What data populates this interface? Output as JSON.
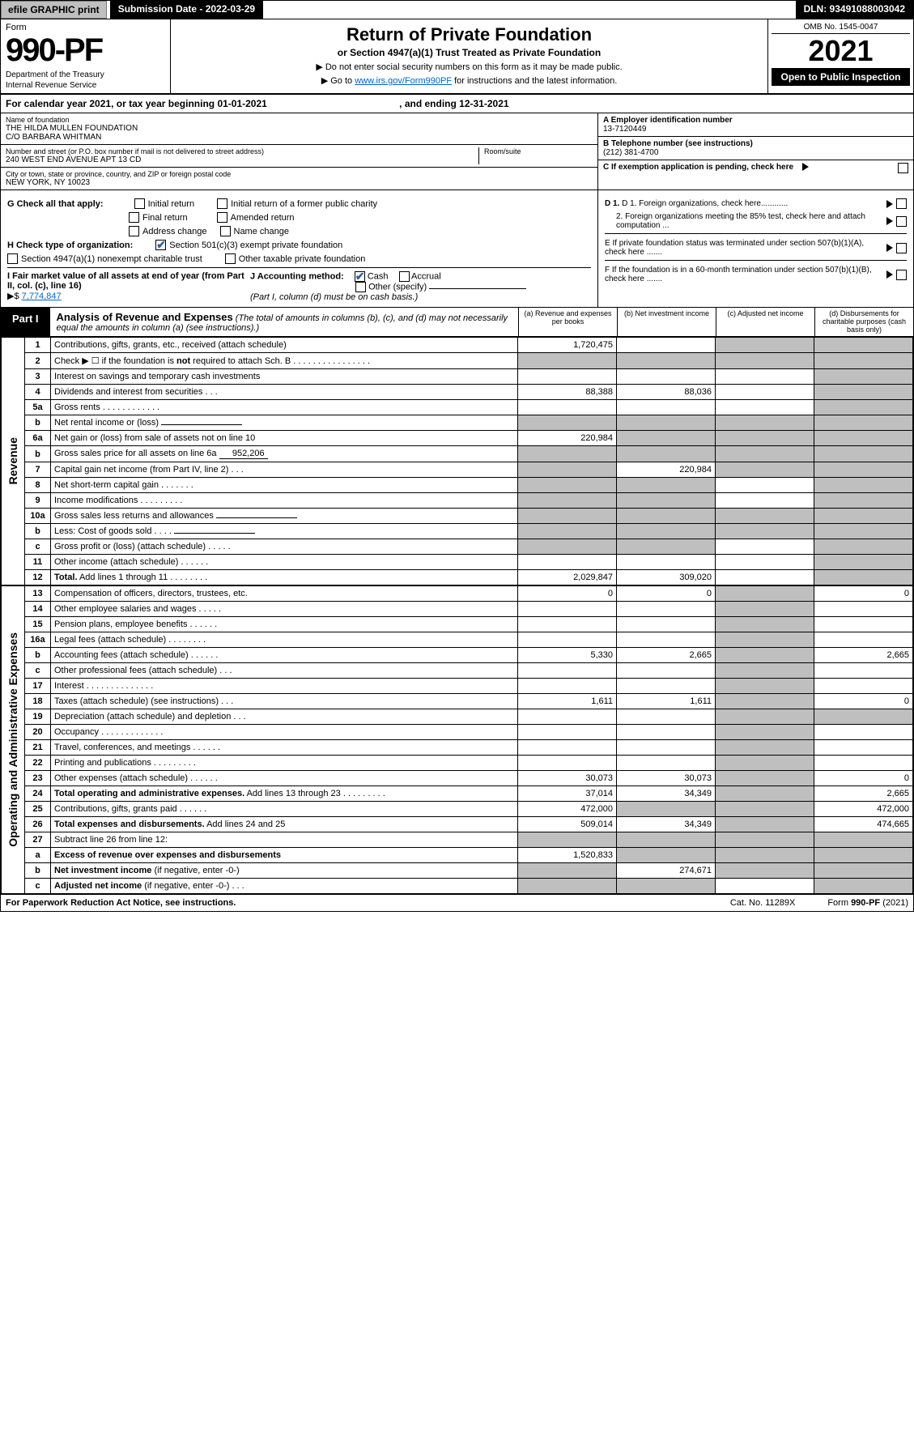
{
  "top": {
    "efile": "efile GRAPHIC print",
    "submission": "Submission Date - 2022-03-29",
    "dln": "DLN: 93491088003042"
  },
  "header": {
    "form_word": "Form",
    "form_number": "990-PF",
    "dept1": "Department of the Treasury",
    "dept2": "Internal Revenue Service",
    "title": "Return of Private Foundation",
    "subtitle": "or Section 4947(a)(1) Trust Treated as Private Foundation",
    "note1": "▶ Do not enter social security numbers on this form as it may be made public.",
    "note2_pre": "▶ Go to ",
    "note2_link": "www.irs.gov/Form990PF",
    "note2_post": " for instructions and the latest information.",
    "omb": "OMB No. 1545-0047",
    "year": "2021",
    "open": "Open to Public Inspection"
  },
  "cal": {
    "text": "For calendar year 2021, or tax year beginning 01-01-2021",
    "ending": ", and ending 12-31-2021"
  },
  "entity": {
    "name_label": "Name of foundation",
    "name1": "THE HILDA MULLEN FOUNDATION",
    "name2": "C/O BARBARA WHITMAN",
    "addr_label": "Number and street (or P.O. box number if mail is not delivered to street address)",
    "addr": "240 WEST END AVENUE APT 13 CD",
    "room_label": "Room/suite",
    "city_label": "City or town, state or province, country, and ZIP or foreign postal code",
    "city": "NEW YORK, NY  10023",
    "ein_label": "A Employer identification number",
    "ein": "13-7120449",
    "tel_label": "B Telephone number (see instructions)",
    "tel": "(212) 381-4700",
    "c_label": "C If exemption application is pending, check here"
  },
  "checks": {
    "g": "G Check all that apply:",
    "g1": "Initial return",
    "g2": "Initial return of a former public charity",
    "g3": "Final return",
    "g4": "Amended return",
    "g5": "Address change",
    "g6": "Name change",
    "h": "H Check type of organization:",
    "h1": "Section 501(c)(3) exempt private foundation",
    "h2": "Section 4947(a)(1) nonexempt charitable trust",
    "h3": "Other taxable private foundation",
    "i": "I Fair market value of all assets at end of year (from Part II, col. (c), line 16)",
    "i_arrow": "▶$",
    "i_val": "7,774,847",
    "j": "J Accounting method:",
    "j1": "Cash",
    "j2": "Accrual",
    "j3": "Other (specify)",
    "j_note": "(Part I, column (d) must be on cash basis.)",
    "d1": "D 1. Foreign organizations, check here............",
    "d2": "2. Foreign organizations meeting the 85% test, check here and attach computation ...",
    "e": "E  If private foundation status was terminated under section 507(b)(1)(A), check here .......",
    "f": "F  If the foundation is in a 60-month termination under section 507(b)(1)(B), check here .......",
    "colors": {
      "accent": "#2b5f9e",
      "grey": "#bfbfbf",
      "link": "#0066cc"
    }
  },
  "part1": {
    "tab": "Part I",
    "title": "Analysis of Revenue and Expenses",
    "paren": " (The total of amounts in columns (b), (c), and (d) may not necessarily equal the amounts in column (a) (see instructions).)",
    "col_a": "(a)   Revenue and expenses per books",
    "col_b": "(b)   Net investment income",
    "col_c": "(c)   Adjusted net income",
    "col_d": "(d)   Disbursements for charitable purposes (cash basis only)"
  },
  "side": {
    "rev": "Revenue",
    "exp": "Operating and Administrative Expenses"
  },
  "rows": [
    {
      "n": "1",
      "d": "Contributions, gifts, grants, etc., received (attach schedule)",
      "a": "1,720,475",
      "b": "",
      "c": "g",
      "dcol": "g"
    },
    {
      "n": "2",
      "d": "Check ▶ ☐ if the foundation is <b>not</b> required to attach Sch. B   .  .  .  .  .  .  .  .  .  .  .  .  .  .  .  .",
      "a": "g",
      "b": "g",
      "c": "g",
      "dcol": "g"
    },
    {
      "n": "3",
      "d": "Interest on savings and temporary cash investments",
      "a": "",
      "b": "",
      "c": "",
      "dcol": "g"
    },
    {
      "n": "4",
      "d": "Dividends and interest from securities    .   .   .",
      "a": "88,388",
      "b": "88,036",
      "c": "",
      "dcol": "g"
    },
    {
      "n": "5a",
      "d": "Gross rents    .   .   .   .   .   .   .   .   .   .   .   .",
      "a": "",
      "b": "",
      "c": "",
      "dcol": "g"
    },
    {
      "n": "b",
      "d": "Net rental income or (loss)",
      "a": "g",
      "b": "g",
      "c": "g",
      "dcol": "g",
      "inline": true
    },
    {
      "n": "6a",
      "d": "Net gain or (loss) from sale of assets not on line 10",
      "a": "220,984",
      "b": "g",
      "c": "g",
      "dcol": "g"
    },
    {
      "n": "b",
      "d": "Gross sales price for all assets on line 6a",
      "a": "g",
      "b": "g",
      "c": "g",
      "dcol": "g",
      "inline_val": "952,206"
    },
    {
      "n": "7",
      "d": "Capital gain net income (from Part IV, line 2)   .   .   .",
      "a": "g",
      "b": "220,984",
      "c": "g",
      "dcol": "g"
    },
    {
      "n": "8",
      "d": "Net short-term capital gain   .   .   .   .   .   .   .",
      "a": "g",
      "b": "g",
      "c": "",
      "dcol": "g"
    },
    {
      "n": "9",
      "d": "Income modifications  .   .   .   .   .   .   .   .   .",
      "a": "g",
      "b": "g",
      "c": "",
      "dcol": "g"
    },
    {
      "n": "10a",
      "d": "Gross sales less returns and allowances",
      "a": "g",
      "b": "g",
      "c": "g",
      "dcol": "g",
      "inline": true
    },
    {
      "n": "b",
      "d": "Less: Cost of goods sold    .   .   .   .",
      "a": "g",
      "b": "g",
      "c": "g",
      "dcol": "g",
      "inline": true
    },
    {
      "n": "c",
      "d": "Gross profit or (loss) (attach schedule)    .   .   .   .   .",
      "a": "g",
      "b": "g",
      "c": "",
      "dcol": "g"
    },
    {
      "n": "11",
      "d": "Other income (attach schedule)    .   .   .   .   .   .",
      "a": "",
      "b": "",
      "c": "",
      "dcol": "g"
    },
    {
      "n": "12",
      "d": "<b>Total.</b> Add lines 1 through 11   .   .   .   .   .   .   .   .",
      "a": "2,029,847",
      "b": "309,020",
      "c": "",
      "dcol": "g"
    }
  ],
  "rows_exp": [
    {
      "n": "13",
      "d": "Compensation of officers, directors, trustees, etc.",
      "a": "0",
      "b": "0",
      "c": "g",
      "dcol": "0"
    },
    {
      "n": "14",
      "d": "Other employee salaries and wages   .   .   .   .   .",
      "a": "",
      "b": "",
      "c": "g",
      "dcol": ""
    },
    {
      "n": "15",
      "d": "Pension plans, employee benefits  .   .   .   .   .   .",
      "a": "",
      "b": "",
      "c": "g",
      "dcol": ""
    },
    {
      "n": "16a",
      "d": "Legal fees (attach schedule) .   .   .   .   .   .   .   .",
      "a": "",
      "b": "",
      "c": "g",
      "dcol": ""
    },
    {
      "n": "b",
      "d": "Accounting fees (attach schedule) .   .   .   .   .   .",
      "a": "5,330",
      "b": "2,665",
      "c": "g",
      "dcol": "2,665"
    },
    {
      "n": "c",
      "d": "Other professional fees (attach schedule)    .   .   .",
      "a": "",
      "b": "",
      "c": "g",
      "dcol": ""
    },
    {
      "n": "17",
      "d": "Interest  .   .   .   .   .   .   .   .   .   .   .   .   .   .",
      "a": "",
      "b": "",
      "c": "g",
      "dcol": ""
    },
    {
      "n": "18",
      "d": "Taxes (attach schedule) (see instructions)    .   .   .",
      "a": "1,611",
      "b": "1,611",
      "c": "g",
      "dcol": "0"
    },
    {
      "n": "19",
      "d": "Depreciation (attach schedule) and depletion    .   .   .",
      "a": "",
      "b": "",
      "c": "g",
      "dcol": "g"
    },
    {
      "n": "20",
      "d": "Occupancy .   .   .   .   .   .   .   .   .   .   .   .   .",
      "a": "",
      "b": "",
      "c": "g",
      "dcol": ""
    },
    {
      "n": "21",
      "d": "Travel, conferences, and meetings .   .   .   .   .   .",
      "a": "",
      "b": "",
      "c": "g",
      "dcol": ""
    },
    {
      "n": "22",
      "d": "Printing and publications .   .   .   .   .   .   .   .   .",
      "a": "",
      "b": "",
      "c": "g",
      "dcol": ""
    },
    {
      "n": "23",
      "d": "Other expenses (attach schedule) .   .   .   .   .   .",
      "a": "30,073",
      "b": "30,073",
      "c": "g",
      "dcol": "0"
    },
    {
      "n": "24",
      "d": "<b>Total operating and administrative expenses.</b> Add lines 13 through 23   .   .   .   .   .   .   .   .   .",
      "a": "37,014",
      "b": "34,349",
      "c": "g",
      "dcol": "2,665"
    },
    {
      "n": "25",
      "d": "Contributions, gifts, grants paid    .   .   .   .   .   .",
      "a": "472,000",
      "b": "g",
      "c": "g",
      "dcol": "472,000"
    },
    {
      "n": "26",
      "d": "<b>Total expenses and disbursements.</b> Add lines 24 and 25",
      "a": "509,014",
      "b": "34,349",
      "c": "g",
      "dcol": "474,665"
    },
    {
      "n": "27",
      "d": "Subtract line 26 from line 12:",
      "a": "g",
      "b": "g",
      "c": "g",
      "dcol": "g"
    },
    {
      "n": "a",
      "d": "<b>Excess of revenue over expenses and disbursements</b>",
      "a": "1,520,833",
      "b": "g",
      "c": "g",
      "dcol": "g"
    },
    {
      "n": "b",
      "d": "<b>Net investment income</b> (if negative, enter -0-)",
      "a": "g",
      "b": "274,671",
      "c": "g",
      "dcol": "g"
    },
    {
      "n": "c",
      "d": "<b>Adjusted net income</b> (if negative, enter -0-)   .   .   .",
      "a": "g",
      "b": "g",
      "c": "",
      "dcol": "g"
    }
  ],
  "footer": {
    "left": "For Paperwork Reduction Act Notice, see instructions.",
    "mid": "Cat. No. 11289X",
    "right": "Form 990-PF (2021)"
  }
}
